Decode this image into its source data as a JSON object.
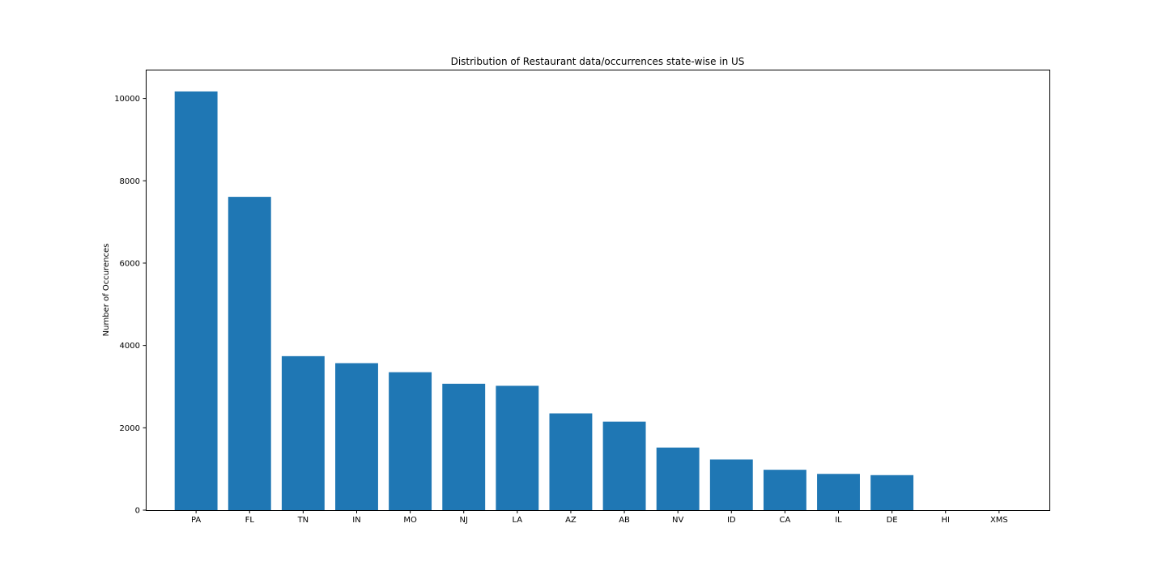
{
  "chart_data": {
    "type": "bar",
    "title": "Distribution of Restaurant data/occurrences state-wise in US",
    "xlabel": "",
    "ylabel": "Number of Occurences",
    "categories": [
      "PA",
      "FL",
      "TN",
      "IN",
      "MO",
      "NJ",
      "LA",
      "AZ",
      "AB",
      "NV",
      "ID",
      "CA",
      "IL",
      "DE",
      "HI",
      "XMS"
    ],
    "values": [
      10170,
      7610,
      3740,
      3570,
      3350,
      3070,
      3020,
      2350,
      2150,
      1520,
      1230,
      980,
      880,
      850,
      0,
      0
    ],
    "ylim": [
      0,
      10700
    ],
    "yticks": [
      0,
      2000,
      4000,
      6000,
      8000,
      10000
    ],
    "bar_color": "#1f77b4",
    "grid": false,
    "legend": "none"
  }
}
